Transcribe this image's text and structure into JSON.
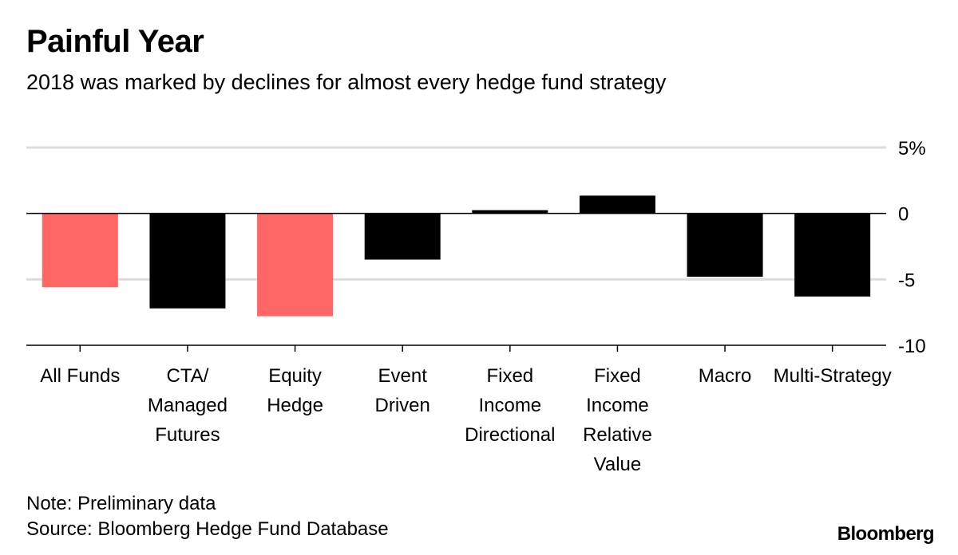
{
  "header": {
    "title": "Painful Year",
    "subtitle": "2018 was marked by declines for almost every hedge fund strategy"
  },
  "footer": {
    "note": "Note: Preliminary data",
    "source": "Source: Bloomberg Hedge Fund Database",
    "brand": "Bloomberg"
  },
  "colors": {
    "highlight": "#ff6666",
    "bar": "#000000",
    "grid": "#dddddd",
    "axis": "#000000"
  },
  "chart_data": {
    "type": "bar",
    "title": "Painful Year",
    "subtitle": "2018 was marked by declines for almost every hedge fund strategy",
    "xlabel": "",
    "ylabel": "",
    "unit": "%",
    "ylim": [
      -10,
      5
    ],
    "yticks": [
      5,
      0,
      -5,
      -10
    ],
    "ytick_labels": [
      "5%",
      "0",
      "-5",
      "-10"
    ],
    "grid": true,
    "categories": [
      [
        "All Funds"
      ],
      [
        "CTA/",
        "Managed",
        "Futures"
      ],
      [
        "Equity",
        "Hedge"
      ],
      [
        "Event",
        "Driven"
      ],
      [
        "Fixed",
        "Income",
        "Directional"
      ],
      [
        "Fixed",
        "Income",
        "Relative",
        "Value"
      ],
      [
        "Macro"
      ],
      [
        "Multi-Strategy"
      ]
    ],
    "values": [
      -5.6,
      -7.2,
      -7.8,
      -3.5,
      0.25,
      1.35,
      -4.8,
      -6.3
    ],
    "highlighted": [
      true,
      false,
      true,
      false,
      false,
      false,
      false,
      false
    ]
  }
}
